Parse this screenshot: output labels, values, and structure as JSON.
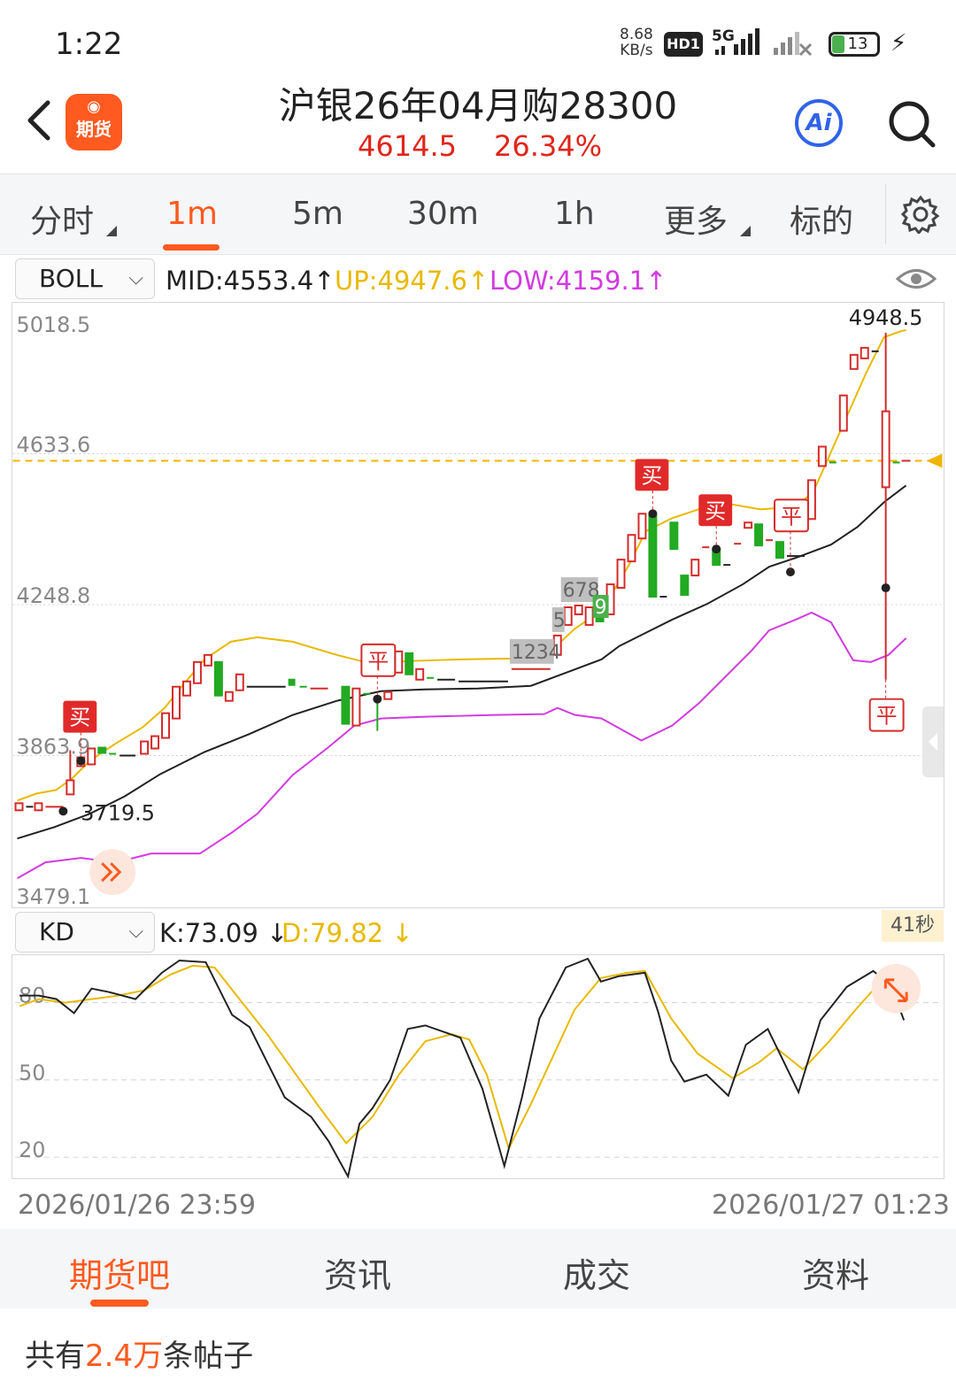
{
  "status_bar": {
    "time": "1:22",
    "net_speed_value": "8.68",
    "net_speed_unit": "KB/s",
    "hd_label": "HD1",
    "network": "5G",
    "battery": "13"
  },
  "header": {
    "app_logo_text": "期货",
    "title": "沪银26年04月购28300",
    "price": "4614.5",
    "change_pct": "26.34%",
    "ai_label": "Ai"
  },
  "tabs": {
    "items": [
      "分时",
      "1m",
      "5m",
      "30m",
      "1h",
      "更多",
      "标的"
    ],
    "active": "1m"
  },
  "boll": {
    "selector": "BOLL",
    "mid": "MID:4553.4",
    "up": "UP:4947.6",
    "low": "LOW:4159.1",
    "arrow": "↑",
    "mid_color": "#222222",
    "up_color": "#e8b900",
    "low_color": "#d23be0"
  },
  "main_chart": {
    "y_labels": [
      "5018.5",
      "4633.6",
      "4248.8",
      "3863.9",
      "3479.1"
    ],
    "high_label": "4948.5",
    "low_label": "3719.5",
    "signal_buy": "买",
    "signal_close": "平",
    "seq_labels": [
      "1234",
      "5",
      "678",
      "9"
    ]
  },
  "kd": {
    "selector": "KD",
    "k": "K:73.09",
    "d": "D:79.82",
    "arrow": "↓",
    "y_labels": [
      "80",
      "50",
      "20"
    ],
    "countdown": "41秒"
  },
  "dates": {
    "start": "2026/01/26 23:59",
    "end": "2026/01/27 01:23"
  },
  "bottom_tabs": {
    "items": [
      "期货吧",
      "资讯",
      "成交",
      "资料"
    ],
    "active": "期货吧"
  },
  "post_count": {
    "prefix": "共有",
    "count": "2.4万",
    "suffix": "条帖子"
  }
}
